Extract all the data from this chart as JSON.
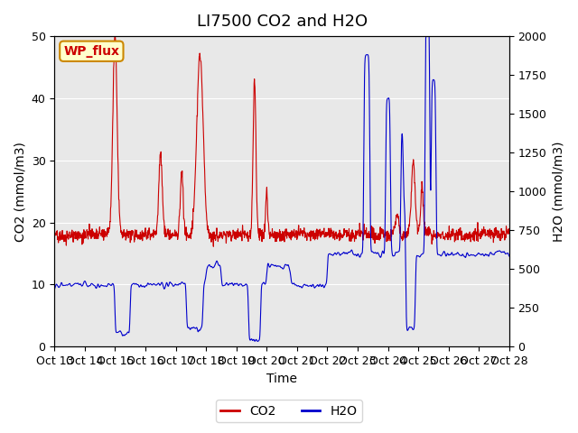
{
  "title": "LI7500 CO2 and H2O",
  "xlabel": "Time",
  "ylabel_left": "CO2 (mmol/m3)",
  "ylabel_right": "H2O (mmol/m3)",
  "ylim_left": [
    0,
    50
  ],
  "ylim_right": [
    0,
    2000
  ],
  "co2_color": "#cc0000",
  "h2o_color": "#0000cc",
  "bg_color": "#e8e8e8",
  "fig_bg": "#ffffff",
  "annotation_text": "WP_flux",
  "annotation_bg": "#ffffcc",
  "annotation_border": "#cc8800",
  "xtick_labels": [
    "Oct 13",
    "Oct 14",
    "Oct 15",
    "Oct 16",
    "Oct 17",
    "Oct 18",
    "Oct 19",
    "Oct 20",
    "Oct 21",
    "Oct 22",
    "Oct 23",
    "Oct 24",
    "Oct 25",
    "Oct 26",
    "Oct 27",
    "Oct 28"
  ],
  "legend_co2": "CO2",
  "legend_h2o": "H2O",
  "title_fontsize": 13,
  "axis_label_fontsize": 10,
  "tick_fontsize": 9,
  "legend_fontsize": 10
}
